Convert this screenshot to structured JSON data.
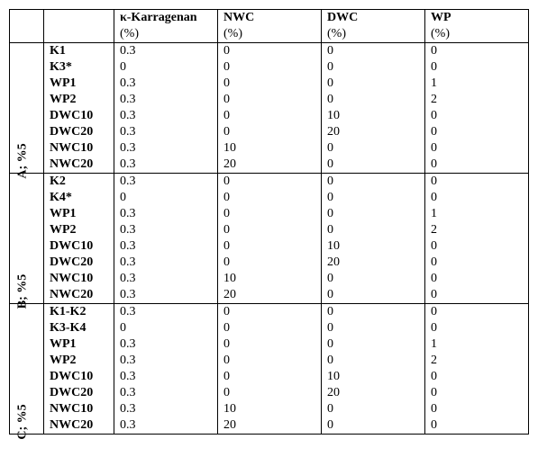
{
  "headers": {
    "c1": "κ-Karragenan",
    "c2": "NWC",
    "c3": "DWC",
    "c4": "WP",
    "unit": "(%)"
  },
  "sections": [
    {
      "label": "A; %5",
      "rows": [
        {
          "label": "K1",
          "v": [
            "0.3",
            "0",
            "0",
            "0"
          ]
        },
        {
          "label": "K3*",
          "v": [
            "0",
            "0",
            "0",
            "0"
          ]
        },
        {
          "label": "WP1",
          "v": [
            "0.3",
            "0",
            "0",
            "1"
          ]
        },
        {
          "label": "WP2",
          "v": [
            "0.3",
            "0",
            "0",
            "2"
          ]
        },
        {
          "label": "DWC10",
          "v": [
            "0.3",
            "0",
            "10",
            "0"
          ]
        },
        {
          "label": "DWC20",
          "v": [
            "0.3",
            "0",
            "20",
            "0"
          ]
        },
        {
          "label": "NWC10",
          "v": [
            "0.3",
            "10",
            "0",
            "0"
          ]
        },
        {
          "label": "NWC20",
          "v": [
            "0.3",
            "20",
            "0",
            "0"
          ]
        }
      ]
    },
    {
      "label": "B; %5",
      "rows": [
        {
          "label": "K2",
          "v": [
            "0.3",
            "0",
            "0",
            "0"
          ]
        },
        {
          "label": "K4*",
          "v": [
            "0",
            "0",
            "0",
            "0"
          ]
        },
        {
          "label": "WP1",
          "v": [
            "0.3",
            "0",
            "0",
            "1"
          ]
        },
        {
          "label": "WP2",
          "v": [
            "0.3",
            "0",
            "0",
            "2"
          ]
        },
        {
          "label": "DWC10",
          "v": [
            "0.3",
            "0",
            "10",
            "0"
          ]
        },
        {
          "label": "DWC20",
          "v": [
            "0.3",
            "0",
            "20",
            "0"
          ]
        },
        {
          "label": "NWC10",
          "v": [
            "0.3",
            "10",
            "0",
            "0"
          ]
        },
        {
          "label": "NWC20",
          "v": [
            "0.3",
            "20",
            "0",
            "0"
          ]
        }
      ]
    },
    {
      "label": "C; %5",
      "rows": [
        {
          "label": "K1-K2",
          "v": [
            "0.3",
            "0",
            "0",
            "0"
          ]
        },
        {
          "label": "K3-K4",
          "v": [
            "0",
            "0",
            "0",
            "0"
          ]
        },
        {
          "label": "WP1",
          "v": [
            "0.3",
            "0",
            "0",
            "1"
          ]
        },
        {
          "label": "WP2",
          "v": [
            "0.3",
            "0",
            "0",
            "2"
          ]
        },
        {
          "label": "DWC10",
          "v": [
            "0.3",
            "0",
            "10",
            "0"
          ]
        },
        {
          "label": "DWC20",
          "v": [
            "0.3",
            "0",
            "20",
            "0"
          ]
        },
        {
          "label": "NWC10",
          "v": [
            "0.3",
            "10",
            "0",
            "0"
          ]
        },
        {
          "label": "NWC20",
          "v": [
            "0.3",
            "20",
            "0",
            "0"
          ]
        }
      ]
    }
  ]
}
